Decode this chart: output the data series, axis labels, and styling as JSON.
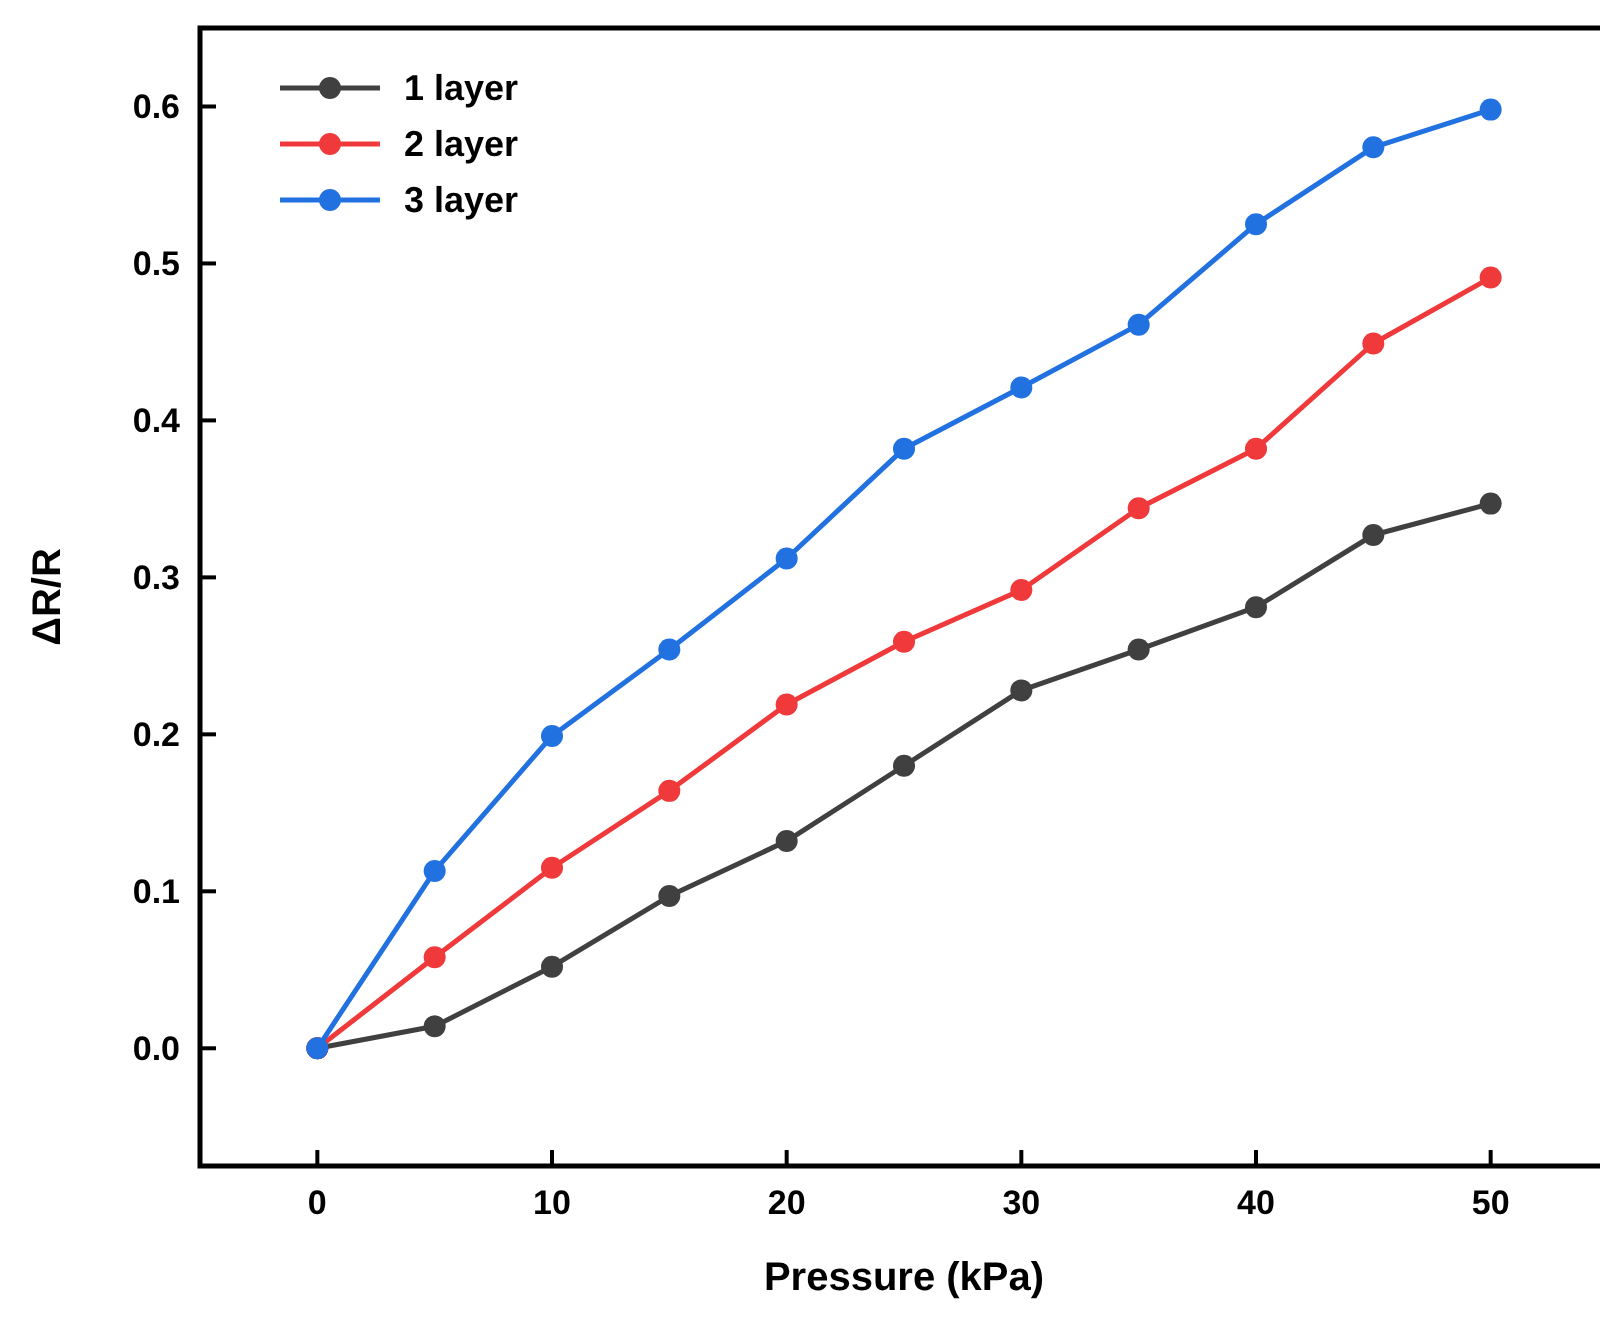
{
  "chart_data": {
    "type": "line",
    "xlabel": "Pressure (kPa)",
    "ylabel": "ΔR/R",
    "x": [
      0,
      5,
      10,
      15,
      20,
      25,
      30,
      35,
      40,
      45,
      50
    ],
    "series": [
      {
        "name": "1 layer",
        "color": "#404040",
        "values": [
          0,
          0.014,
          0.052,
          0.097,
          0.132,
          0.18,
          0.228,
          0.254,
          0.281,
          0.327,
          0.347
        ]
      },
      {
        "name": "2 layer",
        "color": "#f0393a",
        "values": [
          0,
          0.058,
          0.115,
          0.164,
          0.219,
          0.259,
          0.292,
          0.344,
          0.382,
          0.449,
          0.491
        ]
      },
      {
        "name": "3 layer",
        "color": "#2271e0",
        "values": [
          0,
          0.113,
          0.199,
          0.254,
          0.312,
          0.382,
          0.421,
          0.461,
          0.525,
          0.574,
          0.598
        ]
      }
    ],
    "xlim": [
      -5,
      55
    ],
    "xticks": [
      0,
      10,
      20,
      30,
      40,
      50
    ],
    "ylim": [
      -0.075,
      0.65
    ],
    "yticks": [
      {
        "value": 0,
        "label": "0.0"
      },
      0.1,
      0.2,
      0.3,
      0.4,
      0.5,
      0.6
    ],
    "grid": false,
    "legend": "top left",
    "marker": "circle",
    "line_style": "solid"
  }
}
